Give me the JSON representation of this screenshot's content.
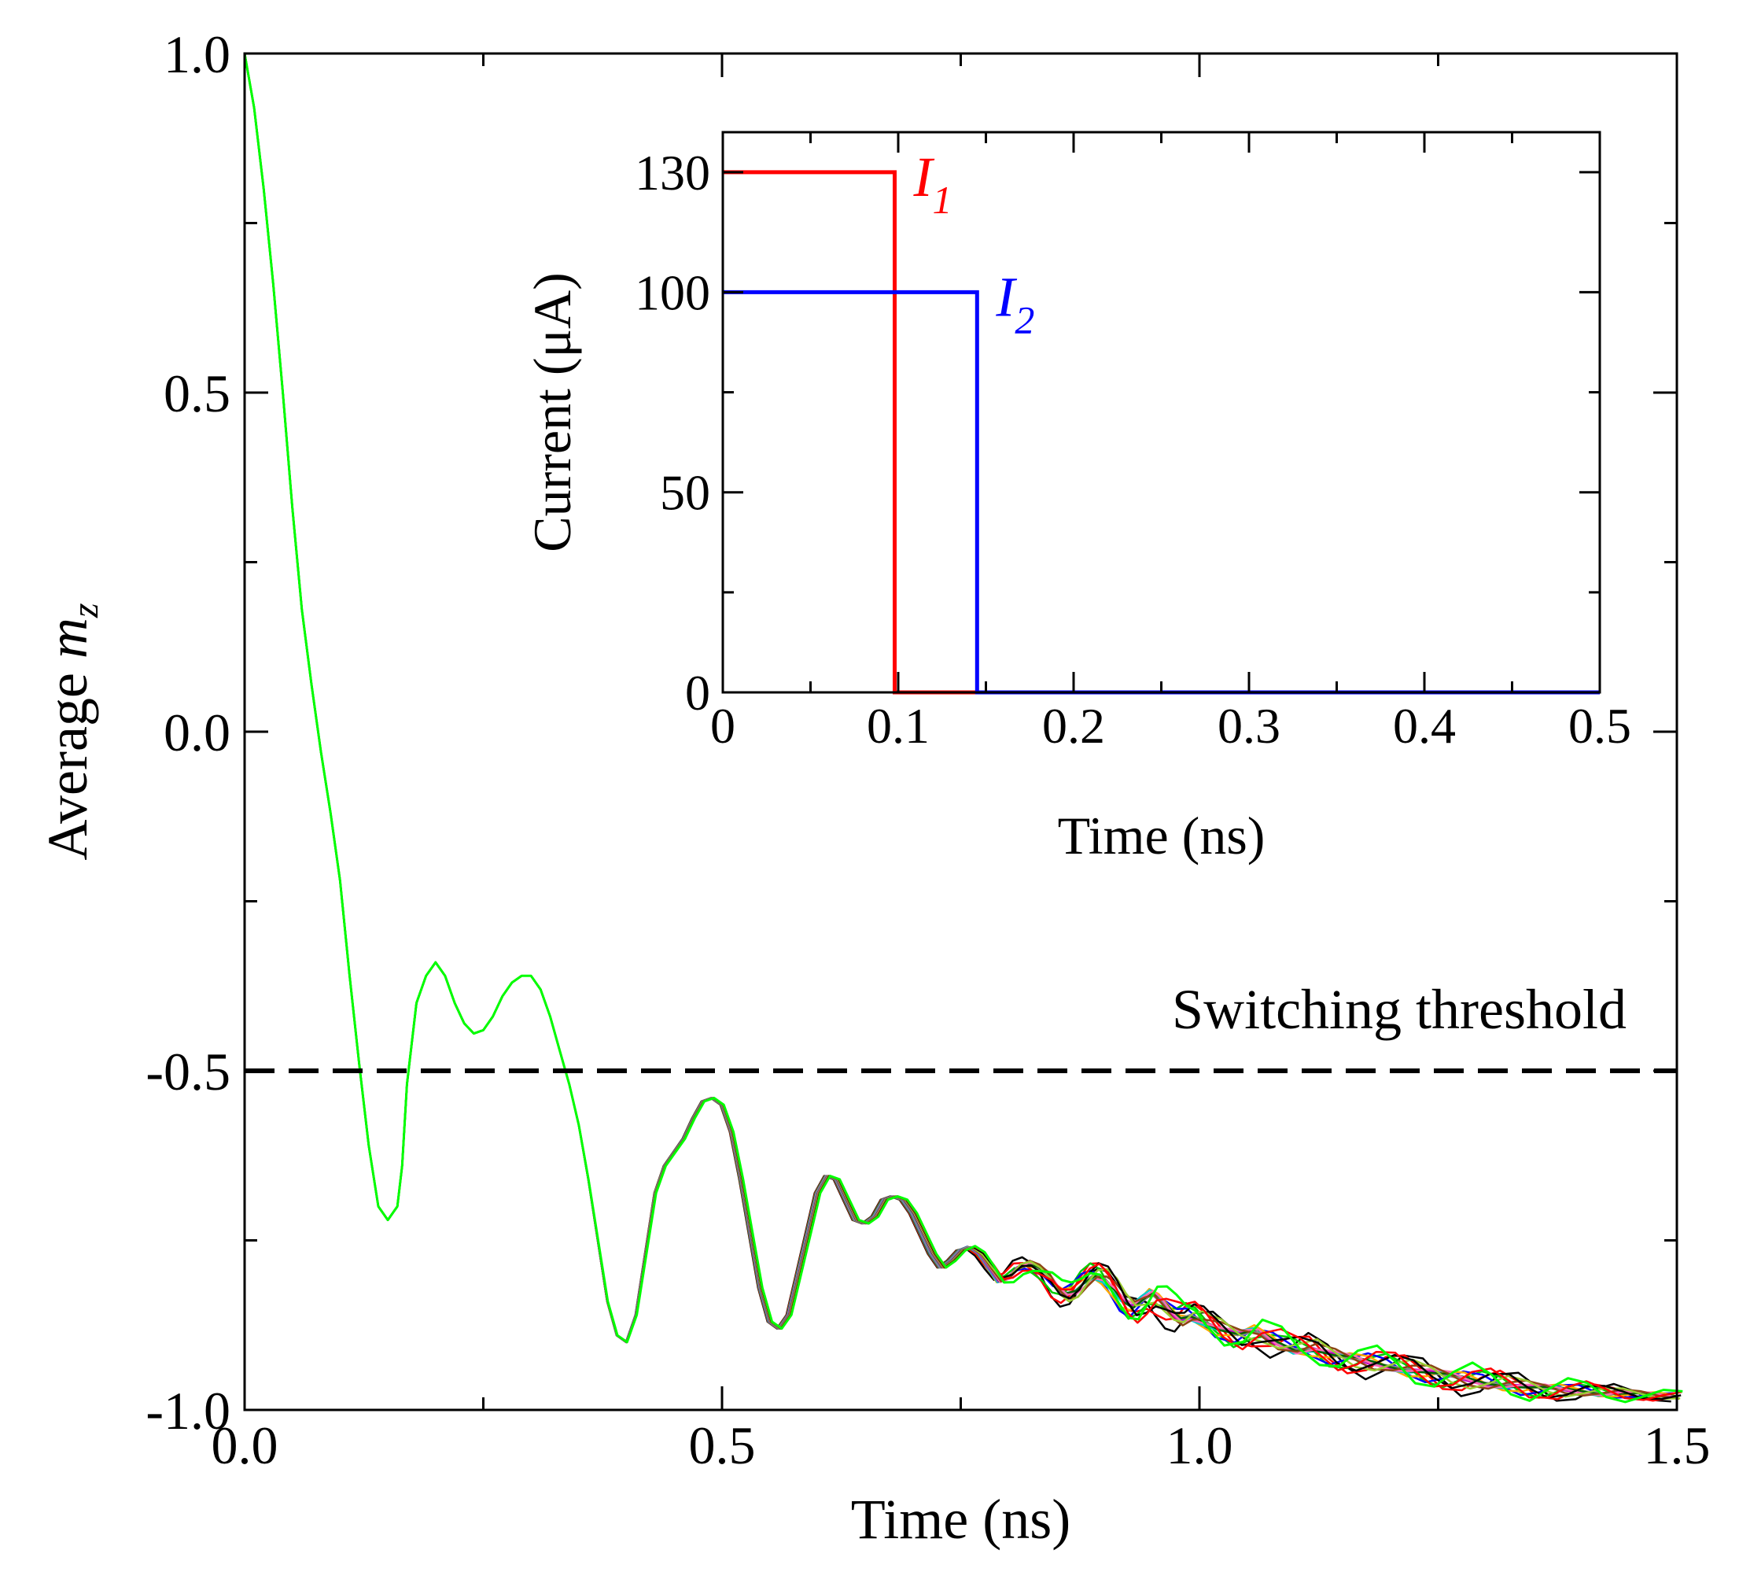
{
  "chart_data": [
    {
      "type": "line",
      "xlabel": "Time (ns)",
      "ylabel_main": "Average",
      "ylabel_var": "m",
      "ylabel_sub": "z",
      "xlim": [
        0,
        1.5
      ],
      "ylim": [
        -1,
        1
      ],
      "x_ticks": [
        "0.0",
        "0.5",
        "1.0",
        "1.5"
      ],
      "x_tick_values": [
        0,
        0.5,
        1.0,
        1.5
      ],
      "y_ticks": [
        "1.0",
        "0.5",
        "0.0",
        "-0.5",
        "-1.0"
      ],
      "y_tick_values": [
        1.0,
        0.5,
        0.0,
        -0.5,
        -1.0
      ],
      "threshold": {
        "label": "Switching threshold",
        "value": -0.5,
        "style": "dashed"
      },
      "base_curve": {
        "x": [
          0,
          0.01,
          0.02,
          0.03,
          0.04,
          0.05,
          0.06,
          0.07,
          0.08,
          0.09,
          0.1,
          0.11,
          0.12,
          0.13,
          0.14,
          0.15,
          0.16,
          0.165,
          0.17,
          0.18,
          0.19,
          0.2,
          0.21,
          0.22,
          0.23,
          0.24,
          0.25,
          0.26,
          0.27,
          0.28,
          0.29,
          0.3,
          0.31,
          0.32,
          0.33,
          0.34,
          0.35,
          0.36,
          0.37,
          0.38,
          0.39,
          0.4,
          0.41,
          0.42,
          0.43,
          0.44,
          0.45,
          0.46,
          0.47,
          0.48,
          0.49,
          0.5,
          0.51,
          0.52,
          0.53,
          0.54,
          0.55,
          0.56,
          0.57,
          0.58,
          0.59,
          0.6,
          0.61,
          0.62,
          0.63,
          0.64,
          0.65,
          0.66,
          0.67,
          0.68,
          0.69,
          0.7,
          0.71,
          0.72,
          0.73,
          0.74,
          0.75,
          0.76,
          0.77,
          0.78,
          0.79,
          0.8,
          0.81,
          0.82,
          0.83,
          0.84,
          0.85,
          0.86,
          0.87,
          0.88,
          0.89,
          0.9,
          0.91,
          0.92,
          0.93,
          0.94,
          0.95,
          0.96,
          0.97,
          0.98,
          0.99,
          1.0,
          1.02,
          1.04,
          1.06,
          1.08,
          1.1,
          1.12,
          1.14,
          1.16,
          1.18,
          1.2,
          1.22,
          1.24,
          1.26,
          1.28,
          1.3,
          1.32,
          1.34,
          1.36,
          1.38,
          1.4,
          1.42,
          1.44,
          1.46,
          1.48,
          1.5
        ],
        "y": [
          1.0,
          0.92,
          0.8,
          0.66,
          0.5,
          0.33,
          0.18,
          0.07,
          -0.03,
          -0.12,
          -0.22,
          -0.36,
          -0.49,
          -0.61,
          -0.7,
          -0.72,
          -0.7,
          -0.64,
          -0.52,
          -0.4,
          -0.36,
          -0.34,
          -0.36,
          -0.4,
          -0.43,
          -0.445,
          -0.44,
          -0.42,
          -0.39,
          -0.37,
          -0.36,
          -0.36,
          -0.38,
          -0.42,
          -0.47,
          -0.52,
          -0.58,
          -0.66,
          -0.75,
          -0.84,
          -0.89,
          -0.9,
          -0.86,
          -0.77,
          -0.68,
          -0.64,
          -0.62,
          -0.6,
          -0.57,
          -0.545,
          -0.54,
          -0.55,
          -0.59,
          -0.66,
          -0.74,
          -0.82,
          -0.87,
          -0.88,
          -0.86,
          -0.8,
          -0.74,
          -0.68,
          -0.655,
          -0.66,
          -0.69,
          -0.72,
          -0.725,
          -0.715,
          -0.69,
          -0.685,
          -0.69,
          -0.71,
          -0.74,
          -0.77,
          -0.79,
          -0.78,
          -0.765,
          -0.76,
          -0.77,
          -0.79,
          -0.81,
          -0.805,
          -0.79,
          -0.785,
          -0.79,
          -0.8,
          -0.82,
          -0.83,
          -0.825,
          -0.81,
          -0.8,
          -0.805,
          -0.82,
          -0.84,
          -0.85,
          -0.84,
          -0.83,
          -0.84,
          -0.855,
          -0.865,
          -0.86,
          -0.865,
          -0.88,
          -0.89,
          -0.885,
          -0.9,
          -0.91,
          -0.91,
          -0.92,
          -0.925,
          -0.93,
          -0.935,
          -0.94,
          -0.945,
          -0.95,
          -0.955,
          -0.96,
          -0.962,
          -0.966,
          -0.968,
          -0.97,
          -0.972,
          -0.975,
          -0.975,
          -0.976,
          -0.978,
          -0.98
        ]
      },
      "spread_start_x": 0.35,
      "series_colors": [
        "#000000",
        "#ff0000",
        "#00cc00",
        "#0000ff",
        "#ffaa00",
        "#00cccc",
        "#cc00cc",
        "#888888",
        "#006400",
        "#ff69b4",
        "#8b4513",
        "#9acd32",
        "#000000",
        "#ff0000",
        "#00ff00"
      ]
    },
    {
      "type": "line",
      "inset": true,
      "xlabel": "Time (ns)",
      "ylabel": "Current (μA)",
      "xlim": [
        0,
        0.5
      ],
      "ylim": [
        0,
        140
      ],
      "x_ticks": [
        "0",
        "0.1",
        "0.2",
        "0.3",
        "0.4",
        "0.5"
      ],
      "x_tick_values": [
        0,
        0.1,
        0.2,
        0.3,
        0.4,
        0.5
      ],
      "y_ticks": [
        "0",
        "50",
        "100",
        "130"
      ],
      "y_tick_values": [
        0,
        50,
        100,
        130
      ],
      "series": [
        {
          "name": "I",
          "sub": "1",
          "color": "#ff0000",
          "x": [
            0,
            0.098,
            0.098,
            0.145
          ],
          "values": [
            130,
            130,
            0,
            0
          ]
        },
        {
          "name": "I",
          "sub": "2",
          "color": "#0000ff",
          "x": [
            0,
            0.145,
            0.145,
            0.5
          ],
          "values": [
            100,
            100,
            0,
            0
          ]
        }
      ]
    }
  ]
}
